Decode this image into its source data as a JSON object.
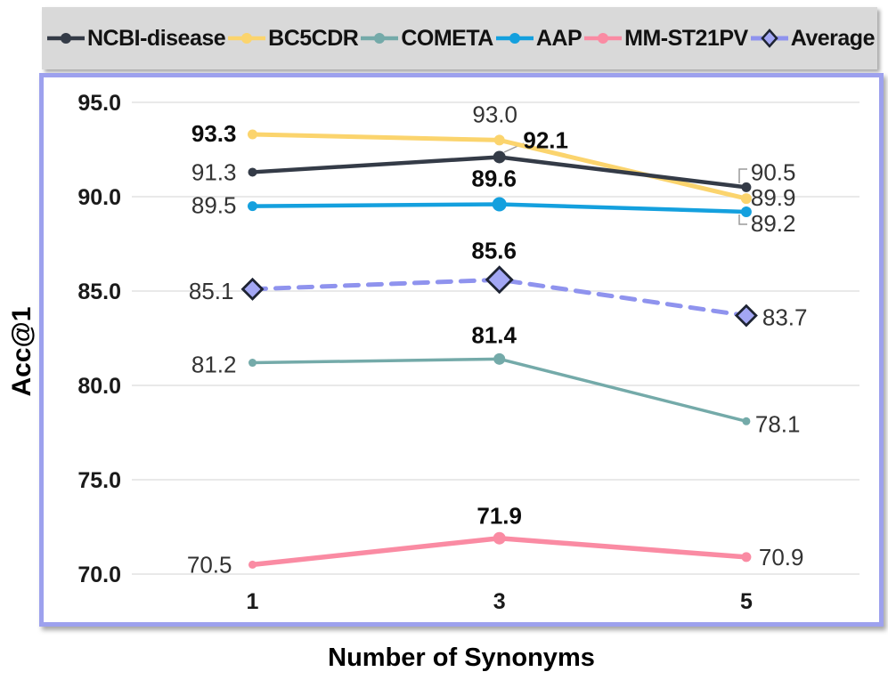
{
  "legend": {
    "items": [
      {
        "label": "NCBI-disease",
        "color": "#343b47",
        "marker": "circle"
      },
      {
        "label": "BC5CDR",
        "color": "#fbd46d",
        "marker": "circle"
      },
      {
        "label": "COMETA",
        "color": "#74aaa9",
        "marker": "circle"
      },
      {
        "label": "AAP",
        "color": "#14a0de",
        "marker": "circle"
      },
      {
        "label": "MM-ST21PV",
        "color": "#fa8ba3",
        "marker": "circle"
      },
      {
        "label": "Average",
        "color": "#8f93ee",
        "marker": "diamond",
        "marker_fill": "#a3a7f4",
        "marker_stroke": "#1e2433",
        "dashed": true
      }
    ]
  },
  "axes": {
    "y_title": "Acc@1",
    "x_title": "Number of Synonyms",
    "y_ticks": [
      {
        "value": 95,
        "label": "95.0"
      },
      {
        "value": 90,
        "label": "90.0"
      },
      {
        "value": 85,
        "label": "85.0"
      },
      {
        "value": 80,
        "label": "80.0"
      },
      {
        "value": 75,
        "label": "75.0"
      },
      {
        "value": 70,
        "label": "70.0"
      }
    ],
    "x_ticks": [
      {
        "value": 1,
        "label": "1"
      },
      {
        "value": 3,
        "label": "3"
      },
      {
        "value": 5,
        "label": "5"
      }
    ]
  },
  "colors": {
    "grid": "#e2e2e2",
    "legend_bg": "#d9d9d9",
    "plot_border": "#9da1ee",
    "label_regular": "#333333",
    "label_bold": "#0d0d0d",
    "tick_label": "#1a1a1a",
    "leader": "#9a9a9a"
  },
  "chart_data": {
    "type": "line",
    "x": [
      1,
      3,
      5
    ],
    "xlabel": "Number of Synonyms",
    "ylabel": "Acc@1",
    "ylim": [
      68.5,
      96.5
    ],
    "grid": "horizontal",
    "legend_position": "top",
    "series": [
      {
        "name": "BC5CDR",
        "values": [
          93.3,
          93.0,
          89.9
        ],
        "color": "#fbd46d",
        "width": 5,
        "marker": "circle",
        "marker_sizes": [
          5.5,
          6,
          6
        ],
        "labels": [
          {
            "text": "93.3",
            "bold": true,
            "anchor": "end",
            "dx": -18,
            "dy": -1
          },
          {
            "text": "93.0",
            "bold": false,
            "anchor": "middle",
            "dx": -5,
            "dy": -29
          },
          {
            "text": "89.9",
            "bold": false,
            "anchor": "start",
            "dx": 5,
            "dy": -1
          }
        ]
      },
      {
        "name": "COMETA",
        "values": [
          81.2,
          81.4,
          78.1
        ],
        "color": "#74aaa9",
        "width": 3.5,
        "marker": "circle",
        "marker_sizes": [
          4.5,
          6.5,
          4.5
        ],
        "labels": [
          {
            "text": "81.2",
            "bold": false,
            "anchor": "end",
            "dx": -18,
            "dy": 2
          },
          {
            "text": "81.4",
            "bold": true,
            "anchor": "middle",
            "dx": -6,
            "dy": -27
          },
          {
            "text": "78.1",
            "bold": false,
            "anchor": "start",
            "dx": 10,
            "dy": 3
          }
        ]
      },
      {
        "name": "MM-ST21PV",
        "values": [
          70.5,
          71.9,
          70.9
        ],
        "color": "#fa8ba3",
        "width": 5.5,
        "marker": "circle",
        "marker_sizes": [
          4.5,
          7,
          5.5
        ],
        "labels": [
          {
            "text": "70.5",
            "bold": false,
            "anchor": "end",
            "dx": -23,
            "dy": 0
          },
          {
            "text": "71.9",
            "bold": true,
            "anchor": "middle",
            "dx": 0,
            "dy": -25
          },
          {
            "text": "70.9",
            "bold": false,
            "anchor": "start",
            "dx": 14,
            "dy": 0
          }
        ]
      },
      {
        "name": "AAP",
        "values": [
          89.5,
          89.6,
          89.2
        ],
        "color": "#14a0de",
        "width": 4.5,
        "marker": "circle",
        "marker_sizes": [
          5.5,
          8,
          6
        ],
        "labels": [
          {
            "text": "89.5",
            "bold": false,
            "anchor": "end",
            "dx": -18,
            "dy": -1
          },
          {
            "text": "89.6",
            "bold": true,
            "anchor": "middle",
            "dx": -6,
            "dy": -29
          },
          {
            "text": "89.2",
            "bold": false,
            "anchor": "start",
            "dx": 5,
            "dy": 13
          }
        ]
      },
      {
        "name": "NCBI-disease",
        "values": [
          91.3,
          92.1,
          90.5
        ],
        "color": "#343b47",
        "width": 4.5,
        "marker": "circle",
        "marker_sizes": [
          5,
          7,
          5.5
        ],
        "labels": [
          {
            "text": "91.3",
            "bold": false,
            "anchor": "end",
            "dx": -18,
            "dy": 0
          },
          {
            "text": "92.1",
            "bold": true,
            "anchor": "middle",
            "dx": 52,
            "dy": -19
          },
          {
            "text": "90.5",
            "bold": false,
            "anchor": "start",
            "dx": 5,
            "dy": -17
          }
        ]
      },
      {
        "name": "Average",
        "values": [
          85.1,
          85.6,
          83.7
        ],
        "color": "#8f93ee",
        "width": 5,
        "dashed": true,
        "dash": "15 11",
        "marker": "diamond",
        "marker_fill": "#a3a7f4",
        "marker_stroke": "#1e2433",
        "marker_sizes": [
          11,
          14,
          11
        ],
        "labels": [
          {
            "text": "85.1",
            "bold": false,
            "anchor": "end",
            "dx": -21,
            "dy": 2
          },
          {
            "text": "85.6",
            "bold": true,
            "anchor": "middle",
            "dx": -6,
            "dy": -33
          },
          {
            "text": "83.7",
            "bold": false,
            "anchor": "start",
            "dx": 18,
            "dy": 2
          }
        ]
      }
    ],
    "leader_lines": [
      {
        "points": [
          [
            566,
            171
          ],
          [
            588,
            161
          ]
        ]
      },
      {
        "points": [
          [
            830,
            206
          ],
          [
            830,
            190
          ],
          [
            839,
            190
          ]
        ]
      },
      {
        "points": [
          [
            830,
            241
          ],
          [
            830,
            252
          ],
          [
            839,
            252
          ]
        ]
      }
    ],
    "title": ""
  }
}
